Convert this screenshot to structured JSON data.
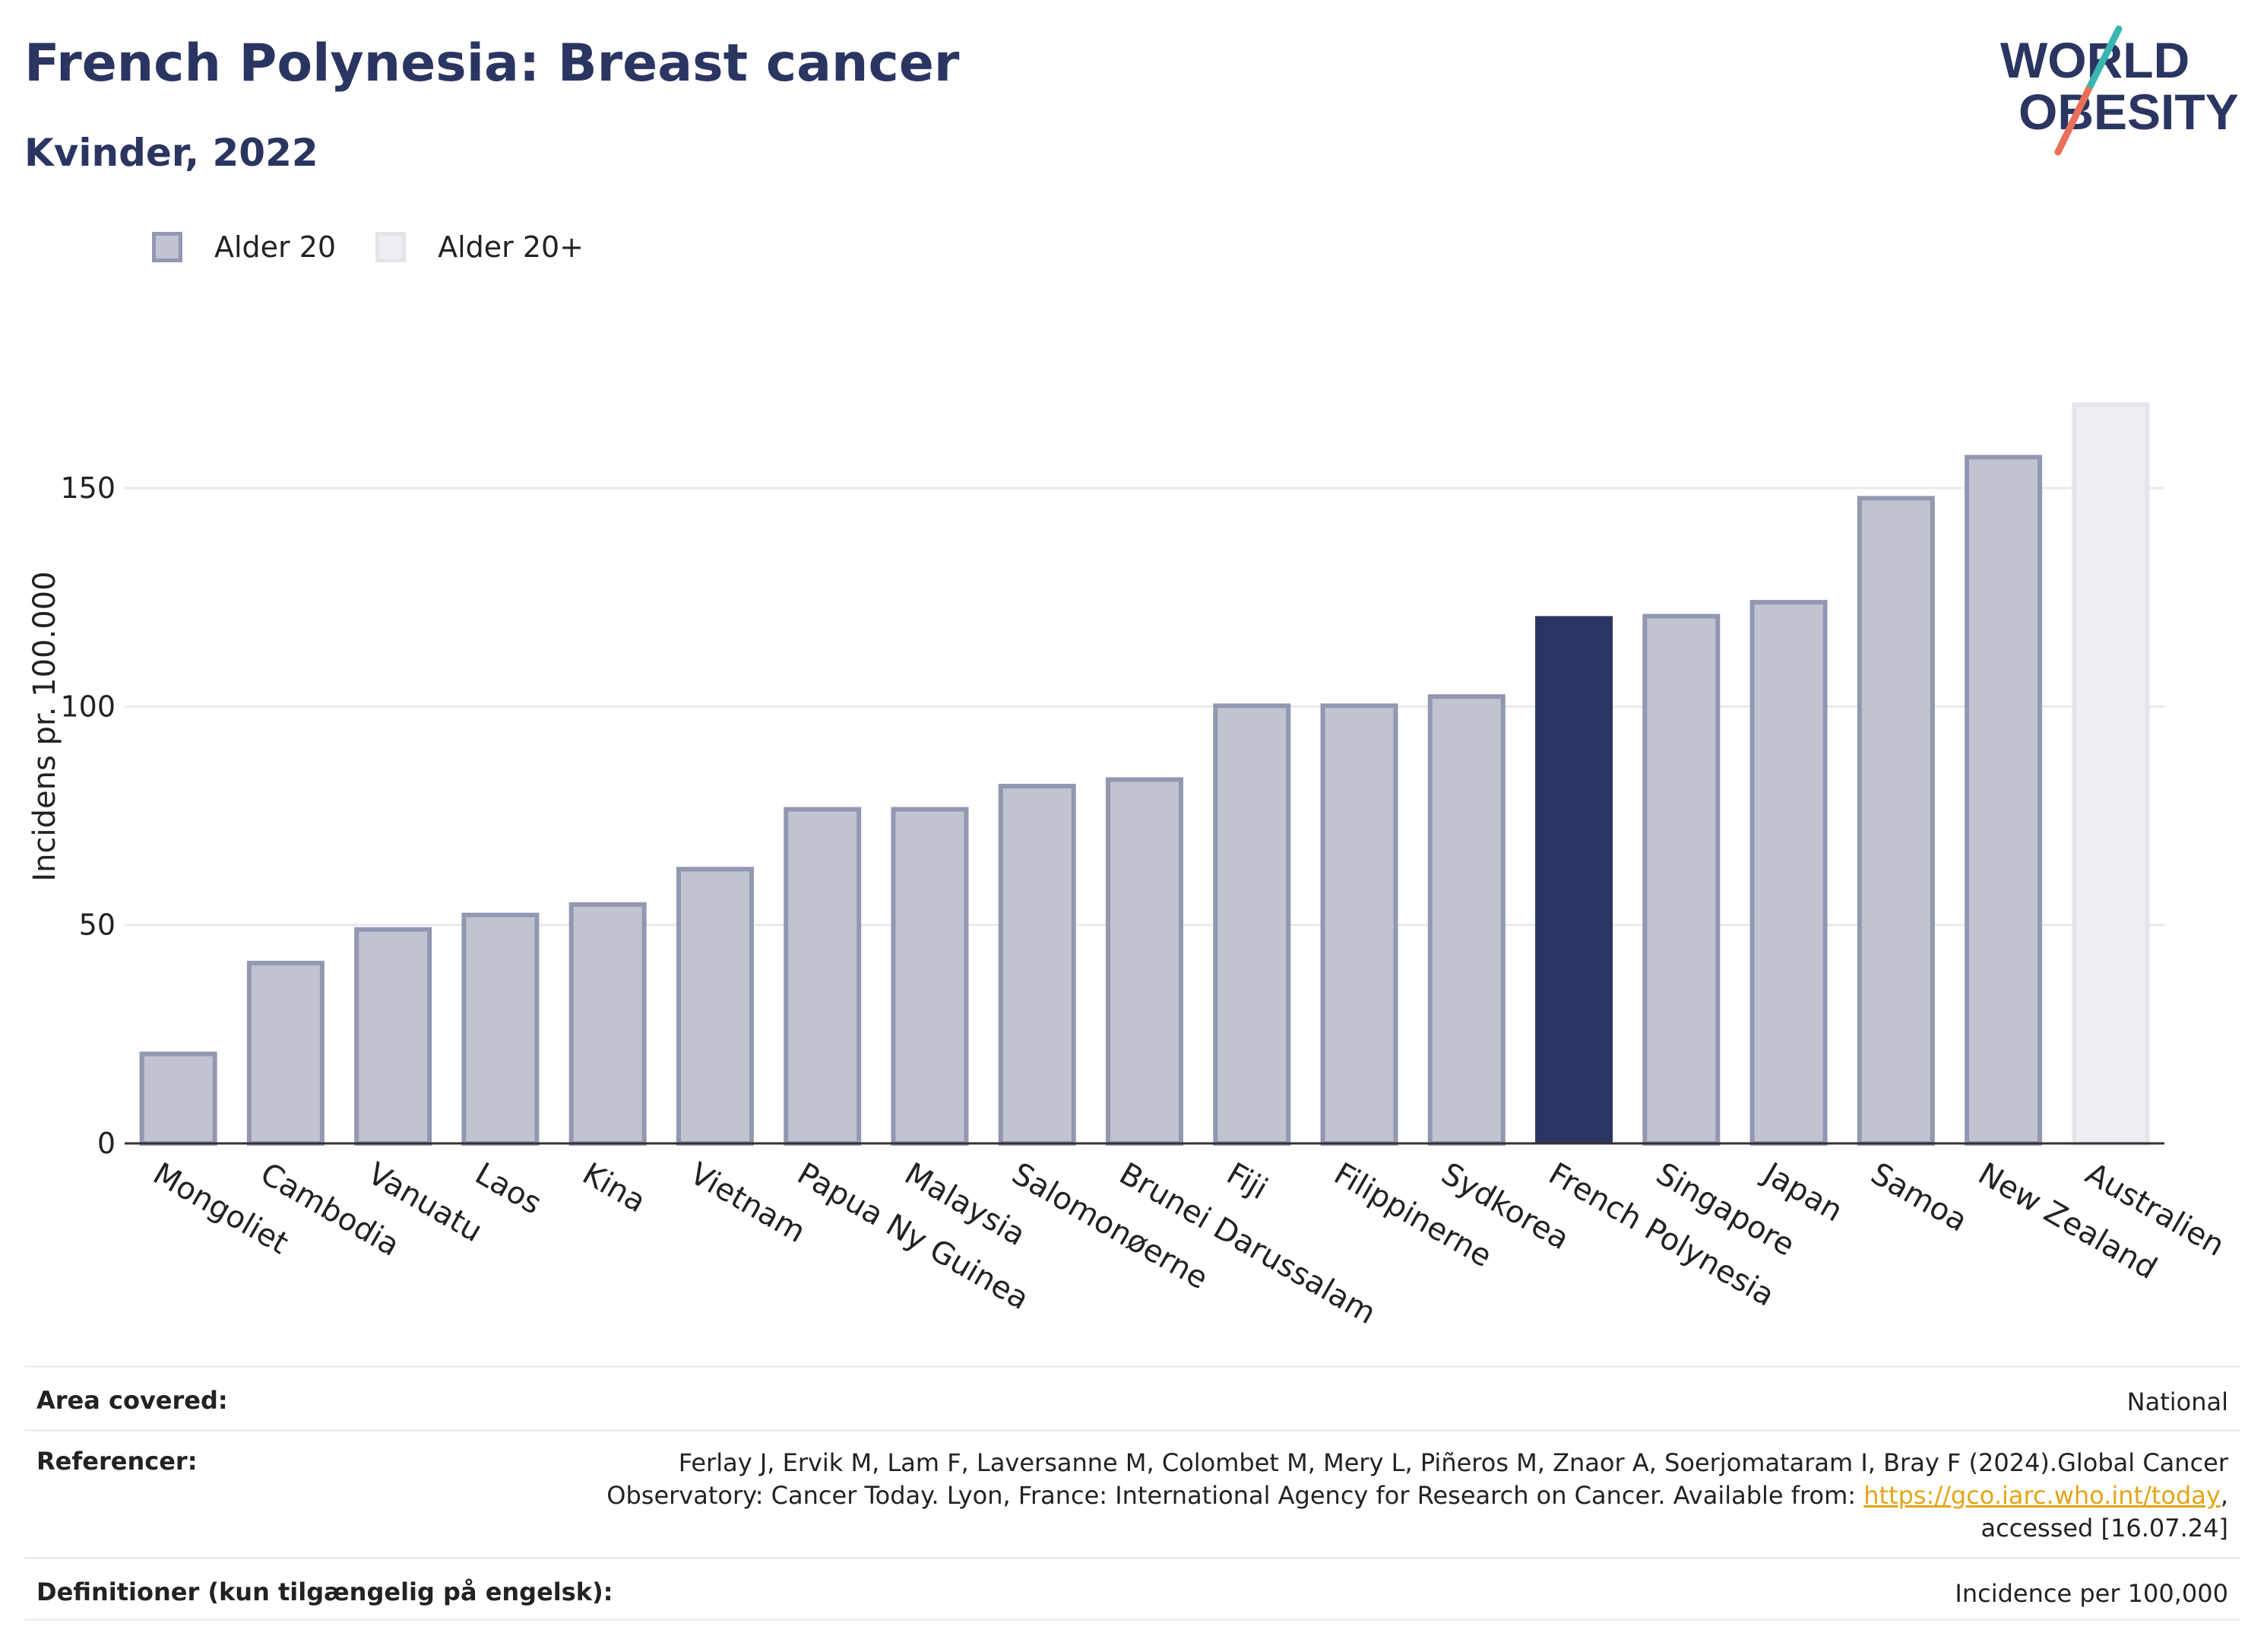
{
  "header": {
    "title": "French Polynesia: Breast cancer",
    "subtitle": "Kvinder, 2022"
  },
  "logo": {
    "line1": "WORLD",
    "line2": "OBESITY",
    "text_color": "#2b3562",
    "accent_teal": "#3ab6b0",
    "accent_coral": "#e8705a"
  },
  "legend": {
    "items": [
      {
        "label": "Alder 20",
        "fill": "#c0c3d0",
        "stroke": "#9298b1"
      },
      {
        "label": "Alder 20+",
        "fill": "#eeeff3",
        "stroke": "#e4e5ea"
      }
    ]
  },
  "chart_data": {
    "type": "bar",
    "ylabel": "Incidens pr. 100.000",
    "ylim": [
      0,
      170
    ],
    "yticks": [
      0,
      50,
      100,
      150
    ],
    "grid": true,
    "legend_position": "top-left",
    "categories": [
      "Mongoliet",
      "Cambodia",
      "Vanuatu",
      "Laos",
      "Kina",
      "Vietnam",
      "Papua Ny Guinea",
      "Malaysia",
      "Salomonøerne",
      "Brunei Darussalam",
      "Fiji",
      "Filippinerne",
      "Sydkorea",
      "French Polynesia",
      "Singapore",
      "Japan",
      "Samoa",
      "New Zealand",
      "Australien"
    ],
    "values": [
      21.0,
      41.8,
      49.5,
      52.8,
      55.2,
      63.3,
      77.0,
      77.0,
      82.3,
      83.8,
      100.7,
      100.7,
      102.8,
      120.7,
      121.2,
      124.4,
      148.2,
      157.6,
      169.6
    ],
    "series_group": [
      "Alder 20",
      "Alder 20",
      "Alder 20",
      "Alder 20",
      "Alder 20",
      "Alder 20",
      "Alder 20",
      "Alder 20",
      "Alder 20",
      "Alder 20",
      "Alder 20",
      "Alder 20",
      "Alder 20",
      "Alder 20",
      "Alder 20",
      "Alder 20",
      "Alder 20",
      "Alder 20",
      "Alder 20+"
    ],
    "highlight": "French Polynesia",
    "colors": {
      "bar_fill": "#c0c3d0",
      "bar_stroke": "#9298b1",
      "highlight_fill": "#2b3562",
      "age20plus_fill": "#eeeff3",
      "age20plus_stroke": "#e4e5ea",
      "grid": "#e8eaee",
      "axis": "#333333"
    }
  },
  "meta": {
    "area_label": "Area covered:",
    "area_value": "National",
    "ref_label": "Referencer:",
    "ref_line1": "Ferlay J, Ervik M, Lam F, Laversanne M, Colombet M, Mery L, Piñeros M, Znaor A, Soerjomataram I, Bray F (2024).Global Cancer",
    "ref_line2_pre": "Observatory: Cancer Today. Lyon, France: International Agency for Research on Cancer. Available from: ",
    "ref_link": "https://gco.iarc.who.int/today",
    "ref_line2_post": ",",
    "ref_line3": "accessed [16.07.24]",
    "def_label": "Definitioner (kun tilgængelig på engelsk):",
    "def_value": "Incidence per 100,000"
  }
}
